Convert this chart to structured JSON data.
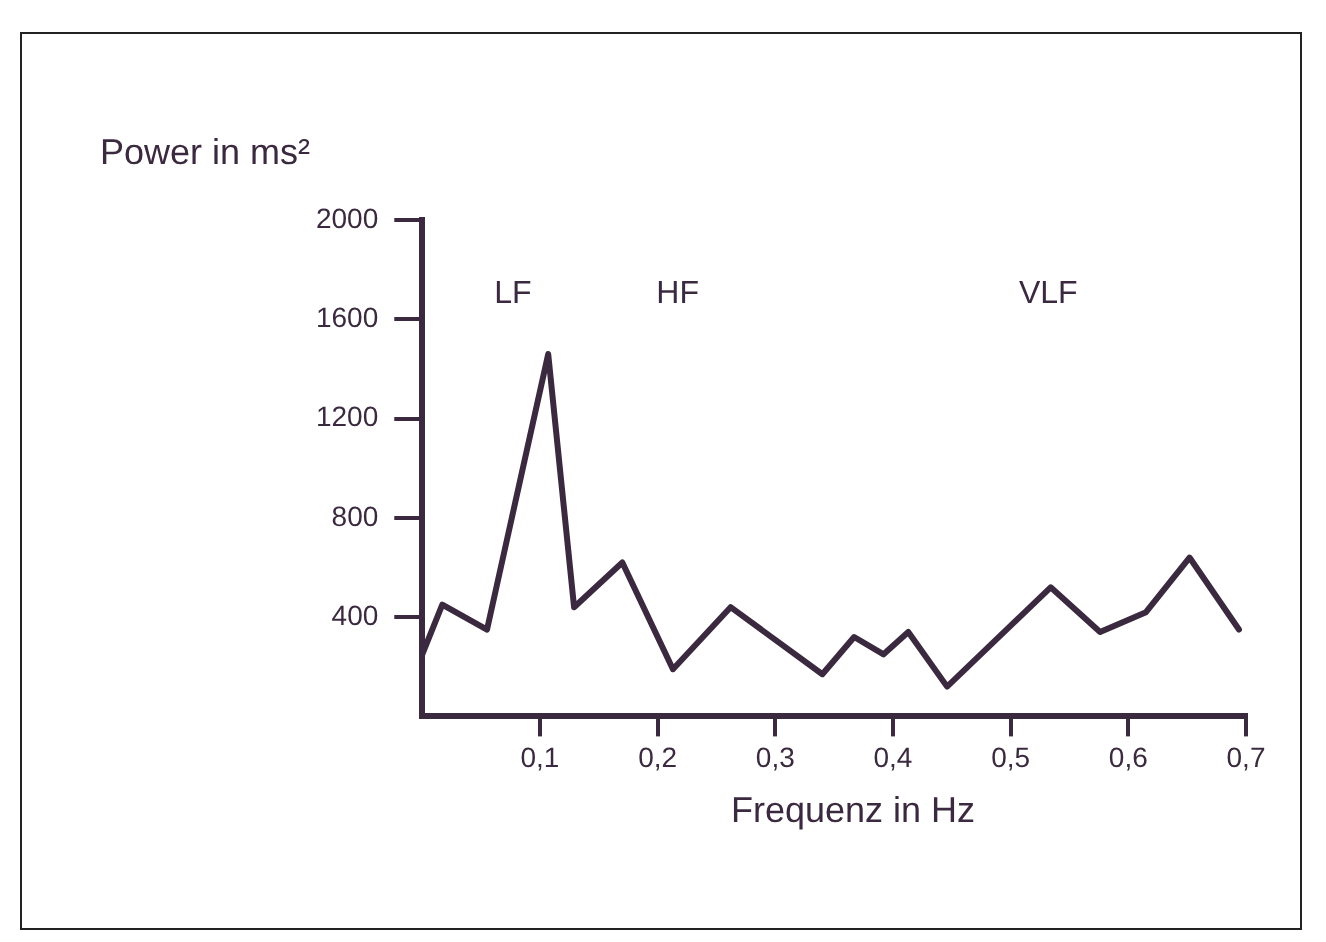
{
  "chart_data": {
    "type": "line",
    "xlabel": "Frequenz in Hz",
    "ylabel": "Power in ms²",
    "x": [
      0,
      0.017,
      0.055,
      0.107,
      0.129,
      0.17,
      0.213,
      0.262,
      0.34,
      0.367,
      0.392,
      0.413,
      0.446,
      0.534,
      0.576,
      0.615,
      0.652,
      0.694
    ],
    "series": [
      {
        "color": "#3b2a3f",
        "values": [
          250,
          450,
          350,
          1460,
          440,
          620,
          190,
          440,
          170,
          320,
          250,
          340,
          120,
          520,
          340,
          420,
          640,
          350
        ]
      }
    ],
    "xlim": [
      0,
      0.7
    ],
    "xticks": [
      {
        "value": 0.1,
        "label": "0,1"
      },
      {
        "value": 0.2,
        "label": "0,2"
      },
      {
        "value": 0.3,
        "label": "0,3"
      },
      {
        "value": 0.4,
        "label": "0,4"
      },
      {
        "value": 0.5,
        "label": "0,5"
      },
      {
        "value": 0.6,
        "label": "0,6"
      },
      {
        "value": 0.7,
        "label": "0,7"
      }
    ],
    "ylim": [
      0,
      2000
    ],
    "yticks": [
      400,
      800,
      1200,
      1600,
      2000
    ],
    "annotations": [
      "LF",
      "HF",
      "VLF"
    ],
    "grid": false,
    "legend": false,
    "marker": "none",
    "line_style": "solid"
  }
}
